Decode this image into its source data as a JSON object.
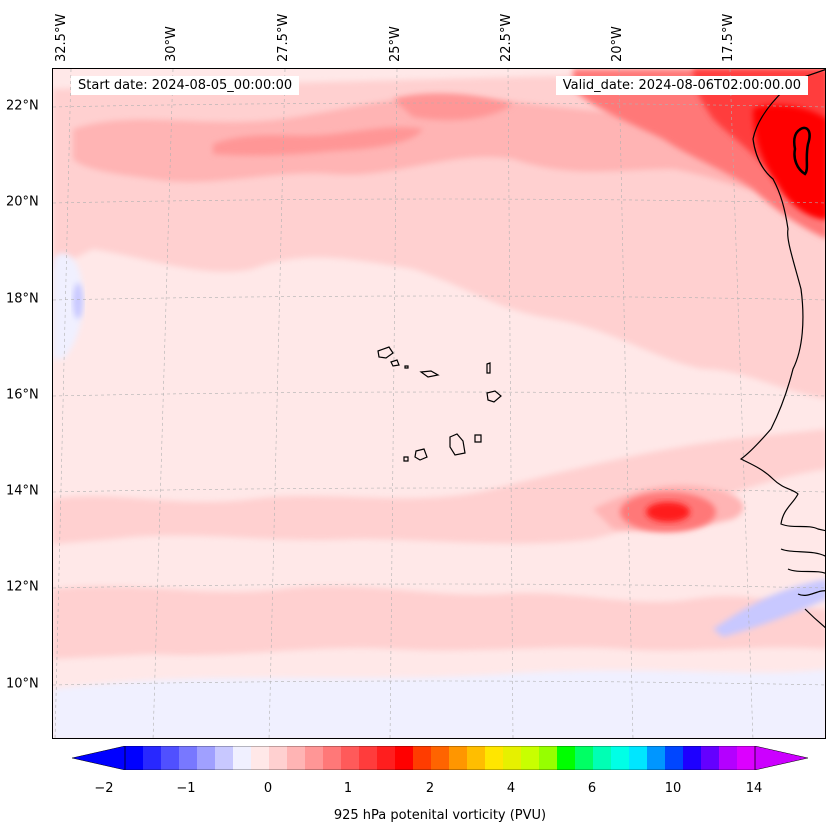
{
  "map": {
    "start_label": "Start date: 2024-08-05_00:00:00",
    "valid_label": "Valid_date: 2024-08-06T02:00:00.00",
    "longitude_labels": [
      "32.5°W",
      "30°W",
      "27.5°W",
      "25°W",
      "22.5°W",
      "20°W",
      "17.5°W"
    ],
    "latitude_labels": [
      "22°N",
      "20°N",
      "18°N",
      "16°N",
      "14°N",
      "12°N",
      "10°N"
    ],
    "gridlines": true
  },
  "colorbar": {
    "title": "925 hPa potenital vorticity (PVU)",
    "tick_labels": [
      "−2",
      "−1",
      "0",
      "1",
      "2",
      "4",
      "6",
      "10",
      "14"
    ],
    "colors": [
      "#0000ff",
      "#2828ff",
      "#5050ff",
      "#7878ff",
      "#a0a0ff",
      "#c8c8ff",
      "#f0f0ff",
      "#ffe8e8",
      "#ffd0d0",
      "#ffb4b4",
      "#ff9696",
      "#ff7878",
      "#ff5a5a",
      "#ff3c3c",
      "#ff1e1e",
      "#ff0000",
      "#ff3c00",
      "#ff6400",
      "#ff9600",
      "#ffbe00",
      "#ffe600",
      "#e6f000",
      "#c8ff00",
      "#96ff00",
      "#00ff00",
      "#00ff64",
      "#00ffb4",
      "#00ffe6",
      "#00e6ff",
      "#0096ff",
      "#0046ff",
      "#1e00ff",
      "#6400ff",
      "#b400ff",
      "#dc00ff"
    ],
    "under_color": "#0000ff",
    "over_color": "#cc00ff"
  }
}
